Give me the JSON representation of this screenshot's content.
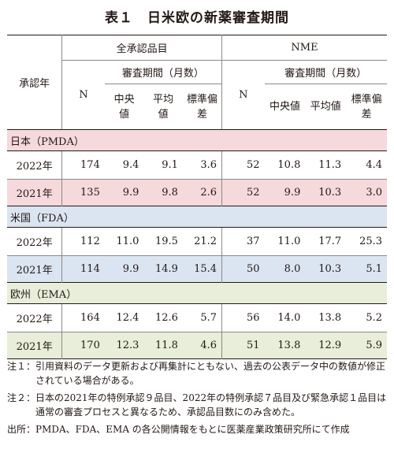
{
  "title": "表１　日米欧の新薬審査期間",
  "header": {
    "year_label": "承認年",
    "all_label": "全承認品目",
    "nme_label": "NME",
    "period_label": "審査期間（月数）",
    "n_label": "N",
    "median_label": "中央値",
    "mean_label": "平均値",
    "sd_label": "標準偏差"
  },
  "groups": [
    {
      "name": "日本（PMDA）",
      "rows": [
        {
          "year": "2022年",
          "all_n": "174",
          "all_median": "9.4",
          "all_mean": "9.1",
          "all_sd": "3.6",
          "nme_n": "52",
          "nme_median": "10.8",
          "nme_mean": "11.3",
          "nme_sd": "4.4"
        },
        {
          "year": "2021年",
          "all_n": "135",
          "all_median": "9.9",
          "all_mean": "9.8",
          "all_sd": "2.6",
          "nme_n": "52",
          "nme_median": "9.9",
          "nme_mean": "10.3",
          "nme_sd": "3.0"
        }
      ]
    },
    {
      "name": "米国（FDA）",
      "rows": [
        {
          "year": "2022年",
          "all_n": "112",
          "all_median": "11.0",
          "all_mean": "19.5",
          "all_sd": "21.2",
          "nme_n": "37",
          "nme_median": "11.0",
          "nme_mean": "17.7",
          "nme_sd": "25.3"
        },
        {
          "year": "2021年",
          "all_n": "114",
          "all_median": "9.9",
          "all_mean": "14.9",
          "all_sd": "15.4",
          "nme_n": "50",
          "nme_median": "8.0",
          "nme_mean": "10.3",
          "nme_sd": "5.1"
        }
      ]
    },
    {
      "name": "欧州（EMA）",
      "rows": [
        {
          "year": "2022年",
          "all_n": "164",
          "all_median": "12.4",
          "all_mean": "12.6",
          "all_sd": "5.7",
          "nme_n": "56",
          "nme_median": "14.0",
          "nme_mean": "13.8",
          "nme_sd": "5.2"
        },
        {
          "year": "2021年",
          "all_n": "170",
          "all_median": "12.3",
          "all_mean": "11.8",
          "all_sd": "4.6",
          "nme_n": "51",
          "nme_median": "13.8",
          "nme_mean": "12.9",
          "nme_sd": "5.9"
        }
      ]
    }
  ],
  "colors": {
    "japan": "#f5d9dc",
    "usa": "#dbe5f2",
    "europe": "#e8eed9"
  },
  "notes": [
    {
      "label": "注１：",
      "text": "引用資料のデータ更新および再集計にともない、過去の公表データ中の数値が修正されている場合がある。"
    },
    {
      "label": "注２：",
      "text": "日本の2021年の特例承認９品目、2022年の特例承認７品目及び緊急承認１品目は通常の審査プロセスと異なるため、承認品目数にのみ含めた。"
    },
    {
      "label": "出所：",
      "text": "PMDA、FDA、EMA の各公開情報をもとに医薬産業政策研究所にて作成"
    }
  ]
}
